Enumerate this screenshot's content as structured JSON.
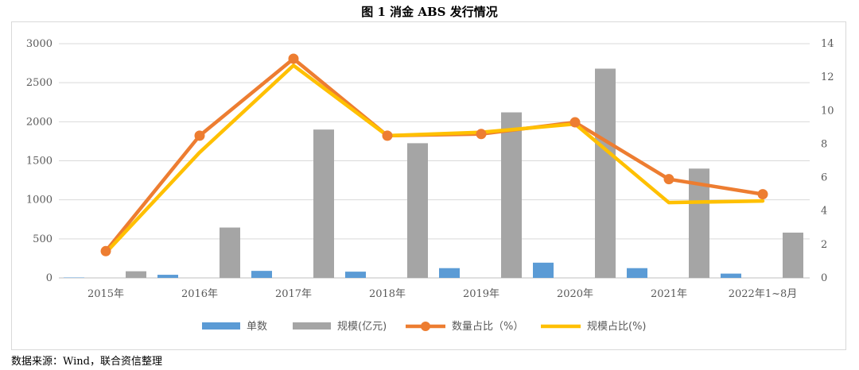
{
  "title": "图 1    消金 ABS 发行情况",
  "source": "数据来源：Wind，联合资信整理",
  "chart_data": {
    "type": "bar",
    "categories": [
      "2015年",
      "2016年",
      "2017年",
      "2018年",
      "2019年",
      "2020年",
      "2021年",
      "2022年1~8月"
    ],
    "left_axis": {
      "ylim": [
        0,
        3000
      ],
      "ticks": [
        0,
        500,
        1000,
        1500,
        2000,
        2500,
        3000
      ]
    },
    "right_axis": {
      "ylim": [
        0,
        14
      ],
      "ticks": [
        0,
        2,
        4,
        6,
        8,
        10,
        12,
        14
      ]
    },
    "series": [
      {
        "name": "单数",
        "type": "bar",
        "axis": "left",
        "color": "#5b9bd5",
        "values": [
          5,
          40,
          90,
          80,
          125,
          195,
          125,
          55
        ]
      },
      {
        "name": "规模(亿元)",
        "type": "bar",
        "axis": "left",
        "color": "#a5a5a5",
        "values": [
          85,
          645,
          1900,
          1725,
          2120,
          2680,
          1400,
          580
        ]
      },
      {
        "name": "数量占比（%）",
        "type": "line",
        "axis": "right",
        "color": "#ed7d31",
        "marker": "circle",
        "values": [
          1.6,
          8.5,
          13.1,
          8.5,
          8.6,
          9.3,
          5.9,
          5.0
        ]
      },
      {
        "name": "规模占比(%)",
        "type": "line",
        "axis": "right",
        "color": "#ffc000",
        "values": [
          1.5,
          7.5,
          12.7,
          8.5,
          8.7,
          9.2,
          4.5,
          4.6
        ]
      }
    ],
    "grid": true,
    "legend_position": "bottom"
  }
}
